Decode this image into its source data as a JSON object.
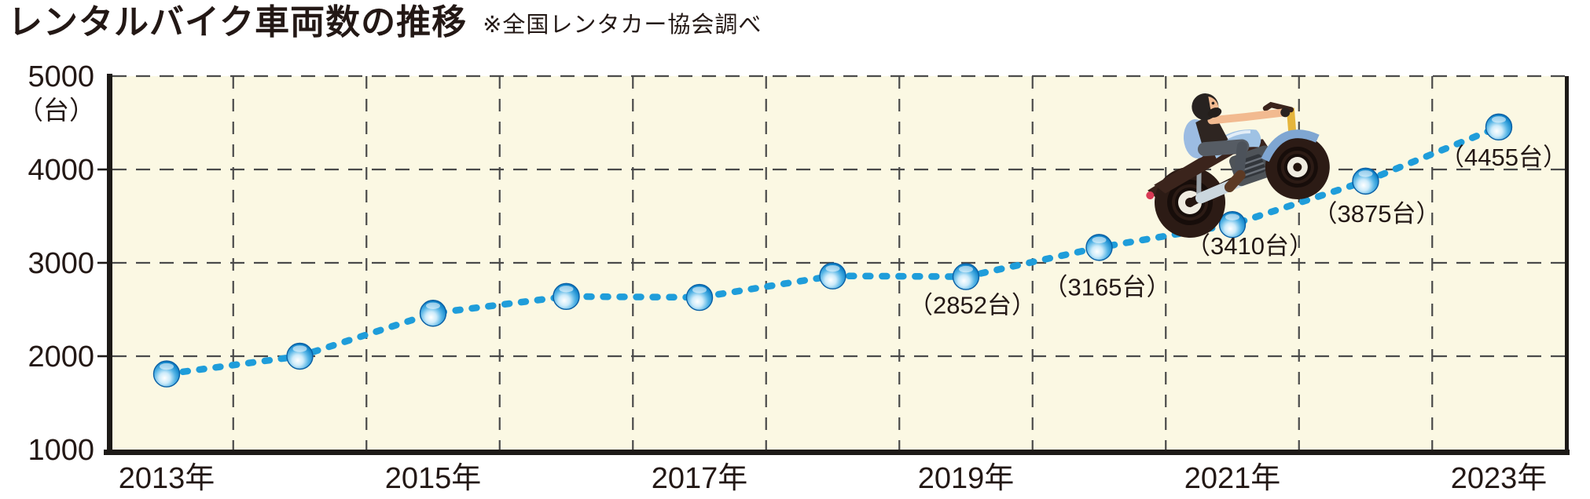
{
  "header": {
    "title": "レンタルバイク車両数の推移",
    "source_note": "※全国レンタカー協会調べ"
  },
  "chart_data": {
    "type": "line",
    "title": "レンタルバイク車両数の推移",
    "source_note": "※全国レンタカー協会調べ",
    "unit_label": "（台）",
    "ylim": [
      1000,
      5000
    ],
    "y_ticks": [
      5000,
      4000,
      3000,
      2000,
      1000
    ],
    "x_years": [
      2013,
      2014,
      2015,
      2016,
      2017,
      2018,
      2019,
      2020,
      2021,
      2022,
      2023
    ],
    "x_tick_labels": [
      {
        "year": 2013,
        "label": "2013年"
      },
      {
        "year": 2015,
        "label": "2015年"
      },
      {
        "year": 2017,
        "label": "2017年"
      },
      {
        "year": 2019,
        "label": "2019年"
      },
      {
        "year": 2021,
        "label": "2021年"
      },
      {
        "year": 2023,
        "label": "2023年"
      }
    ],
    "values": [
      1810,
      2000,
      2460,
      2640,
      2630,
      2860,
      2852,
      3165,
      3410,
      3875,
      4455
    ],
    "labeled_years": [
      2019,
      2020,
      2021,
      2022,
      2023
    ],
    "point_labels": [
      {
        "year": 2019,
        "value": 2852,
        "text": "（2852台）"
      },
      {
        "year": 2020,
        "value": 3165,
        "text": "（3165台）"
      },
      {
        "year": 2021,
        "value": 3410,
        "text": "（3410台）"
      },
      {
        "year": 2022,
        "value": 3875,
        "text": "（3875台）"
      },
      {
        "year": 2023,
        "value": 4455,
        "text": "（4455台）"
      }
    ],
    "grid": "dashed",
    "legend": "none",
    "line_style": "dotted",
    "marker_style": "glossy-sphere",
    "decoration": {
      "type": "motorcycle-rider-illustration",
      "position": "riding-up-line-above-2021-2022-segment"
    },
    "colors": {
      "line": "#1F9DDA",
      "marker_core": "#FFFFFF",
      "marker_mid": "#56B5E6",
      "marker_edge": "#0A62A8",
      "plot_background": "#FBF8E3",
      "grid": "#4A4A4A",
      "axis": "#1D1A17",
      "text": "#231815"
    }
  }
}
